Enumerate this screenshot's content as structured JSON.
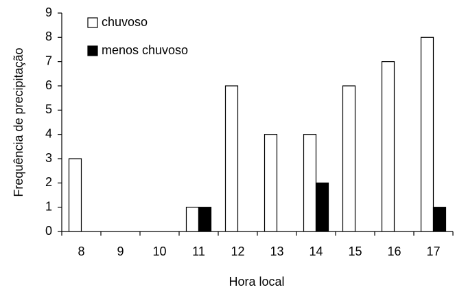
{
  "chart_data": {
    "type": "bar",
    "categories": [
      8,
      9,
      10,
      11,
      12,
      13,
      14,
      15,
      16,
      17
    ],
    "series": [
      {
        "name": "chuvoso",
        "color": "#ffffff",
        "values": [
          3,
          0,
          0,
          1,
          6,
          4,
          4,
          6,
          7,
          8
        ]
      },
      {
        "name": "menos chuvoso",
        "color": "#000000",
        "values": [
          0,
          0,
          0,
          1,
          0,
          0,
          2,
          0,
          0,
          1
        ]
      }
    ],
    "ylim": [
      0,
      9
    ],
    "yticks": [
      0,
      1,
      2,
      3,
      4,
      5,
      6,
      7,
      8,
      9
    ],
    "xlabel": "Hora local",
    "ylabel": "Frequência de precipitação",
    "grid": false,
    "legend": "upper left"
  }
}
